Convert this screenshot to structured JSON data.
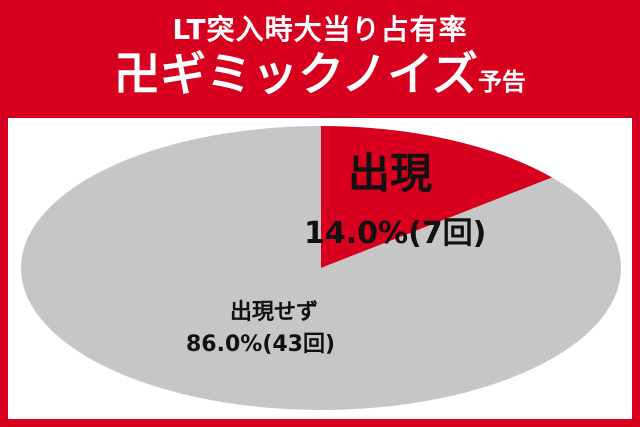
{
  "header": {
    "line1": "LT突入時大当り占有率",
    "line2": "卍ギミックノイズ",
    "line2_suffix": "予告"
  },
  "chart_data": {
    "type": "pie",
    "slices": [
      {
        "label": "出現",
        "percent": 14.0,
        "count_label": "14.0%(7回)",
        "count": 7,
        "color": "#d7001e"
      },
      {
        "label": "出現せず",
        "percent": 86.0,
        "count_label": "86.0%(43回)",
        "count": 43,
        "color": "#c6c6c6"
      }
    ]
  }
}
